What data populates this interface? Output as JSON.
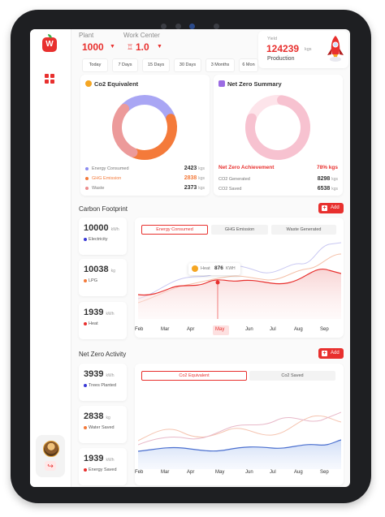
{
  "header": {
    "plant_label": "Plant",
    "plant_value": "1000",
    "work_center_label": "Work Center",
    "work_center_value": "1.0",
    "yield_label": "Yield",
    "yield_value": "124239",
    "yield_unit": "kgs",
    "production_label": "Production"
  },
  "time_tabs": [
    "Today",
    "7 Days",
    "15 Days",
    "30 Days",
    "3 Months",
    "6 Mon"
  ],
  "co2_card": {
    "title": "Co2 Equivalent",
    "rows": [
      {
        "label": "Energy Consumed",
        "value": "2423",
        "unit": "kgs",
        "color": "#8b8bf0"
      },
      {
        "label": "GHG Emission",
        "value": "2838",
        "unit": "kgs",
        "color": "#f47a3a"
      },
      {
        "label": "Waste",
        "value": "2373",
        "unit": "kgs",
        "color": "#ec8d8d"
      }
    ],
    "donut": [
      {
        "name": "Energy Consumed",
        "value": 2423,
        "color": "#a9a6f4"
      },
      {
        "name": "GHG Emission",
        "value": 2838,
        "color": "#f47a3a"
      },
      {
        "name": "Waste",
        "value": 2373,
        "color": "#ec9a9a"
      }
    ]
  },
  "net_zero_card": {
    "title": "Net Zero Summary",
    "achievement_label": "Net Zero Achievement",
    "achievement_value": "78% kgs",
    "rows": [
      {
        "label": "CO2 Generated",
        "value": "8298",
        "unit": "kgs"
      },
      {
        "label": "CO2 Saved",
        "value": "6538",
        "unit": "kgs"
      }
    ],
    "donut_achievement": 0.78
  },
  "carbon_footprint": {
    "title": "Carbon Footprint",
    "add_label": "Add",
    "stats": [
      {
        "value": "10000",
        "unit": "kWh",
        "label": "Electricity",
        "color": "#3a3ad6"
      },
      {
        "value": "10038",
        "unit": "kg",
        "label": "LPG",
        "color": "#f47a3a"
      },
      {
        "value": "1939",
        "unit": "kWh",
        "label": "Heat",
        "color": "#e8302e"
      }
    ],
    "chart_tabs": [
      "Energy Consumed",
      "GHG Emission",
      "Waste Generated"
    ],
    "tooltip_label": "Heat",
    "tooltip_value": "876",
    "tooltip_unit": "KWH",
    "months": [
      "Feb",
      "Mar",
      "Apr",
      "May",
      "Jun",
      "Jul",
      "Aug",
      "Sep"
    ],
    "selected_month": "May"
  },
  "net_zero_activity": {
    "title": "Net Zero Activity",
    "add_label": "Add",
    "stats": [
      {
        "value": "3939",
        "unit": "kWh",
        "label": "Trees Planted",
        "color": "#3a3ad6"
      },
      {
        "value": "2838",
        "unit": "kg",
        "label": "Water Saved",
        "color": "#f47a3a"
      },
      {
        "value": "1939",
        "unit": "kWh",
        "label": "Energy Saved",
        "color": "#e8302e"
      }
    ],
    "chart_tabs": [
      "Co2 Equivalent",
      "Co2 Saved"
    ],
    "months": [
      "Feb",
      "Mar",
      "Apr",
      "May",
      "Jun",
      "Jul",
      "Aug",
      "Sep"
    ]
  }
}
